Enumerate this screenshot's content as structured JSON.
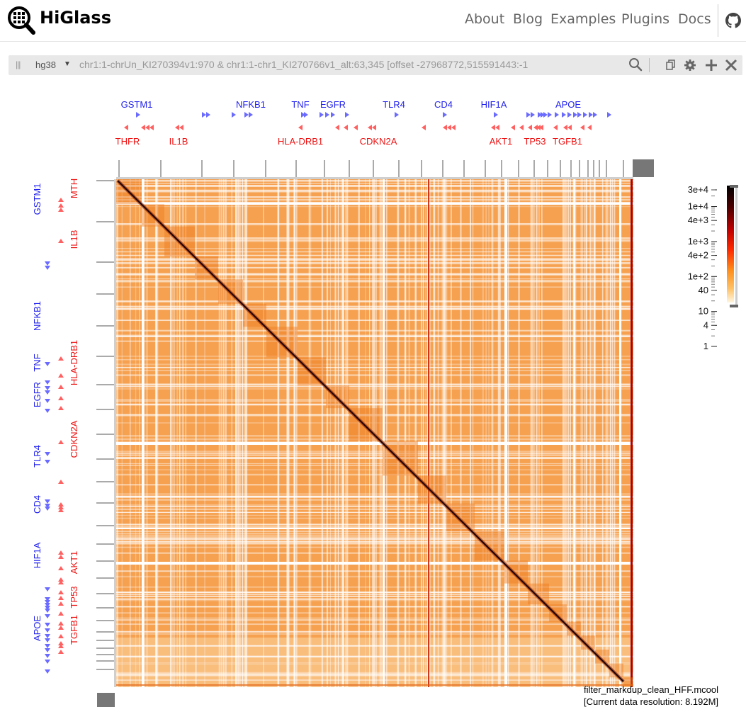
{
  "brand": {
    "name": "HiGlass"
  },
  "nav": {
    "items": [
      "About",
      "Blog",
      "Examples",
      "Plugins",
      "Docs"
    ]
  },
  "view_header": {
    "assembly": "hg38",
    "locus": "chr1:1-chrUn_KI270394v1:970 & chr1:1-chr1_KI270766v1_alt:63,345 [offset -27968772,515591443:-1"
  },
  "top_track": {
    "genes_upper": [
      {
        "name": "GSTM1",
        "pos": 193
      },
      {
        "name": "NFKB1",
        "pos": 354
      },
      {
        "name": "TNF",
        "pos": 424
      },
      {
        "name": "EGFR",
        "pos": 470
      },
      {
        "name": "TLR4",
        "pos": 556
      },
      {
        "name": "CD4",
        "pos": 626
      },
      {
        "name": "HIF1A",
        "pos": 697
      },
      {
        "name": "APOE",
        "pos": 802
      }
    ],
    "genes_lower": [
      {
        "name": "THFR",
        "pos": 180
      },
      {
        "name": "IL1B",
        "pos": 252
      },
      {
        "name": "HLA-DRB1",
        "pos": 424
      },
      {
        "name": "CDKN2A",
        "pos": 534
      },
      {
        "name": "AKT1",
        "pos": 707
      },
      {
        "name": "TP53",
        "pos": 755
      },
      {
        "name": "TGFB1",
        "pos": 801
      }
    ]
  },
  "left_track": {
    "genes_blue": [
      {
        "name": "GSTM1",
        "pos": 281
      },
      {
        "name": "NFKB1",
        "pos": 446
      },
      {
        "name": "TNF",
        "pos": 512
      },
      {
        "name": "EGFR",
        "pos": 557
      },
      {
        "name": "TLR4",
        "pos": 644
      },
      {
        "name": "CD4",
        "pos": 712
      },
      {
        "name": "HIF1A",
        "pos": 784
      },
      {
        "name": "APOE",
        "pos": 887
      }
    ],
    "genes_red": [
      {
        "name": "MTH",
        "pos": 266
      },
      {
        "name": "IL1B",
        "pos": 338
      },
      {
        "name": "HLA-DRB1",
        "pos": 512
      },
      {
        "name": "CDKN2A",
        "pos": 620
      },
      {
        "name": "AKT1",
        "pos": 794
      },
      {
        "name": "TP53",
        "pos": 843
      },
      {
        "name": "TGFB1",
        "pos": 889
      }
    ]
  },
  "colorbar": {
    "ticks": [
      {
        "label": "3e+4",
        "value": 30000
      },
      {
        "label": "1e+4",
        "value": 10000
      },
      {
        "label": "4e+3",
        "value": 4000
      },
      {
        "label": "1e+3",
        "value": 1000
      },
      {
        "label": "4e+2",
        "value": 400
      },
      {
        "label": "1e+2",
        "value": 100
      },
      {
        "label": "40",
        "value": 40
      },
      {
        "label": "10",
        "value": 10
      },
      {
        "label": "4",
        "value": 4
      },
      {
        "label": "1",
        "value": 1
      }
    ],
    "colors": [
      "#000000",
      "#b40000",
      "#ff2a00",
      "#ff9f1c",
      "#fff4d6"
    ]
  },
  "dataset": {
    "name": "filter_markdup_clean_HFF.mcool",
    "resolution": "[Current data resolution: 8.192M]"
  }
}
